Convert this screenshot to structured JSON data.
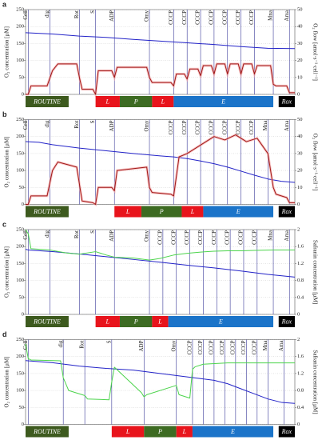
{
  "chart_data": [
    {
      "panel": "a",
      "type": "line",
      "ylabel": "O₂ concentration [µM]",
      "y2label": "O₂ flow [amol·s⁻¹·cell⁻¹]",
      "xlim": [
        0,
        100
      ],
      "ylim": [
        0,
        250
      ],
      "yticks": [
        0,
        50,
        100,
        150,
        200,
        250
      ],
      "y2lim": [
        0,
        50
      ],
      "y2ticks": [
        0,
        10,
        20,
        30,
        40,
        50
      ],
      "grid": true,
      "events": [
        {
          "label": "Cell",
          "x": 1
        },
        {
          "label": "dig",
          "x": 9
        },
        {
          "label": "Rot",
          "x": 20
        },
        {
          "label": "S",
          "x": 26
        },
        {
          "label": "ADP",
          "x": 33
        },
        {
          "label": "Omy",
          "x": 46
        },
        {
          "label": "CCCP",
          "x": 55
        },
        {
          "label": "CCCP",
          "x": 60
        },
        {
          "label": "CCCP",
          "x": 65
        },
        {
          "label": "CCCP",
          "x": 70
        },
        {
          "label": "CCCP",
          "x": 75
        },
        {
          "label": "CCCP",
          "x": 80
        },
        {
          "label": "CCCP",
          "x": 85
        },
        {
          "label": "Mna",
          "x": 92
        },
        {
          "label": "Ama",
          "x": 98
        }
      ],
      "states": [
        {
          "label": "ROUTINE",
          "start": 0,
          "end": 16,
          "color": "#3d5a1e"
        },
        {
          "label": "L",
          "start": 26,
          "end": 35,
          "color": "#e8141c"
        },
        {
          "label": "P",
          "start": 35,
          "end": 47,
          "color": "#3d6b22"
        },
        {
          "label": "L",
          "start": 47,
          "end": 55,
          "color": "#e8141c"
        },
        {
          "label": "E",
          "start": 55,
          "end": 92,
          "color": "#1b74c9"
        },
        {
          "label": "Rox",
          "start": 94,
          "end": 100,
          "color": "#000000"
        }
      ],
      "series": [
        {
          "color": "#2323c8",
          "x": [
            0,
            10,
            20,
            30,
            40,
            50,
            60,
            70,
            80,
            90,
            100
          ],
          "values": [
            182,
            178,
            172,
            168,
            162,
            157,
            152,
            147,
            141,
            136,
            135
          ]
        },
        {
          "color": "#a01818",
          "axis": "y2",
          "x": [
            0,
            1,
            2,
            8,
            10,
            12,
            19,
            20,
            21,
            25,
            26,
            27,
            32,
            33,
            34,
            45,
            46,
            47,
            54,
            55,
            56,
            59,
            60,
            61,
            64,
            65,
            66,
            69,
            70,
            71,
            74,
            75,
            76,
            79,
            80,
            81,
            84,
            85,
            86,
            91,
            92,
            93,
            97,
            98,
            100
          ],
          "values": [
            0,
            0,
            5,
            5,
            14,
            18,
            18,
            10,
            3,
            3,
            0,
            14,
            14,
            10,
            16,
            16,
            10,
            7,
            7,
            5,
            12,
            12,
            9,
            15,
            15,
            11,
            17,
            17,
            12,
            18,
            18,
            12,
            18,
            18,
            12,
            18,
            18,
            12,
            17,
            17,
            6,
            5,
            5,
            1,
            1
          ]
        }
      ]
    },
    {
      "panel": "b",
      "type": "line",
      "ylabel": "O₂ concentration [µM]",
      "y2label": "O₂ flow [amol·s⁻¹·cell⁻¹]",
      "xlim": [
        0,
        100
      ],
      "ylim": [
        0,
        250
      ],
      "yticks": [
        0,
        50,
        100,
        150,
        200,
        250
      ],
      "y2lim": [
        0,
        50
      ],
      "y2ticks": [
        0,
        10,
        20,
        30,
        40,
        50
      ],
      "grid": true,
      "events": [
        {
          "label": "Cell",
          "x": 1
        },
        {
          "label": "dig",
          "x": 9
        },
        {
          "label": "Rot",
          "x": 20
        },
        {
          "label": "S",
          "x": 26
        },
        {
          "label": "ADP",
          "x": 33
        },
        {
          "label": "Omy",
          "x": 46
        },
        {
          "label": "CCCP",
          "x": 55
        },
        {
          "label": "CCCP",
          "x": 60
        },
        {
          "label": "CCCP",
          "x": 65
        },
        {
          "label": "CCCP",
          "x": 70
        },
        {
          "label": "CCCP",
          "x": 75
        },
        {
          "label": "CCCP",
          "x": 80
        },
        {
          "label": "CCCP",
          "x": 85
        },
        {
          "label": "Mna",
          "x": 90
        },
        {
          "label": "Ama",
          "x": 98
        }
      ],
      "states": [
        {
          "label": "ROUTINE",
          "start": 0,
          "end": 16,
          "color": "#3d5a1e"
        },
        {
          "label": "L",
          "start": 33,
          "end": 43,
          "color": "#e8141c"
        },
        {
          "label": "P",
          "start": 43,
          "end": 58,
          "color": "#3d6b22"
        },
        {
          "label": "L",
          "start": 58,
          "end": 66,
          "color": "#e8141c"
        },
        {
          "label": "E",
          "start": 66,
          "end": 92,
          "color": "#1b74c9"
        },
        {
          "label": "Rox",
          "start": 94,
          "end": 100,
          "color": "#000000"
        }
      ],
      "series": [
        {
          "color": "#2323c8",
          "x": [
            0,
            5,
            10,
            20,
            30,
            40,
            50,
            55,
            60,
            65,
            70,
            75,
            80,
            85,
            90,
            95,
            100
          ],
          "values": [
            185,
            183,
            176,
            166,
            158,
            150,
            143,
            140,
            135,
            128,
            120,
            110,
            98,
            86,
            75,
            68,
            65
          ]
        },
        {
          "color": "#a01818",
          "axis": "y2",
          "x": [
            0,
            1,
            2,
            8,
            10,
            12,
            19,
            20,
            21,
            25,
            26,
            27,
            32,
            33,
            34,
            45,
            46,
            47,
            54,
            55,
            57,
            60,
            63,
            66,
            70,
            74,
            78,
            82,
            86,
            90,
            92,
            93,
            97,
            98,
            100
          ],
          "values": [
            0,
            0,
            5,
            5,
            20,
            25,
            22,
            12,
            2,
            1,
            0,
            10,
            10,
            8,
            20,
            22,
            10,
            7,
            6,
            5,
            28,
            30,
            33,
            36,
            40,
            38,
            41,
            37,
            39,
            30,
            10,
            6,
            4,
            1,
            1
          ]
        }
      ]
    },
    {
      "panel": "c",
      "type": "line",
      "ylabel": "O₂ concentration [µM]",
      "y2label": "Safranin concentration [µM]",
      "xlim": [
        0,
        100
      ],
      "ylim": [
        0,
        250
      ],
      "yticks": [
        0,
        50,
        100,
        150,
        200,
        250
      ],
      "y2lim": [
        0,
        2
      ],
      "y2ticks": [
        0,
        0.4,
        0.8,
        1.2,
        1.6,
        2
      ],
      "grid": true,
      "events": [
        {
          "label": "Cell",
          "x": 1
        },
        {
          "label": "dig",
          "x": 9
        },
        {
          "label": "Rot",
          "x": 20
        },
        {
          "label": "S",
          "x": 26
        },
        {
          "label": "ADP",
          "x": 33
        },
        {
          "label": "Omy",
          "x": 46
        },
        {
          "label": "CCCP",
          "x": 51
        },
        {
          "label": "CCCP",
          "x": 56
        },
        {
          "label": "CCCP",
          "x": 61
        },
        {
          "label": "CCCP",
          "x": 66
        },
        {
          "label": "CCCP",
          "x": 71
        },
        {
          "label": "CCCP",
          "x": 76
        },
        {
          "label": "CCCP",
          "x": 81
        },
        {
          "label": "CCCP",
          "x": 86
        },
        {
          "label": "Mna",
          "x": 92
        },
        {
          "label": "Ama",
          "x": 98
        }
      ],
      "states": [
        {
          "label": "ROUTINE",
          "start": 0,
          "end": 16,
          "color": "#3d5a1e"
        },
        {
          "label": "L",
          "start": 26,
          "end": 35,
          "color": "#e8141c"
        },
        {
          "label": "P",
          "start": 35,
          "end": 47,
          "color": "#3d6b22"
        },
        {
          "label": "L",
          "start": 47,
          "end": 53,
          "color": "#e8141c"
        },
        {
          "label": "E",
          "start": 53,
          "end": 92,
          "color": "#1b74c9"
        },
        {
          "label": "Rox",
          "start": 94,
          "end": 100,
          "color": "#000000"
        }
      ],
      "series": [
        {
          "color": "#2323c8",
          "x": [
            0,
            1,
            10,
            20,
            30,
            40,
            50,
            60,
            70,
            80,
            90,
            100
          ],
          "values": [
            192,
            190,
            185,
            178,
            170,
            162,
            154,
            145,
            137,
            128,
            118,
            110
          ]
        },
        {
          "color": "#4cd44c",
          "axis": "y2",
          "x": [
            0,
            1,
            2,
            9,
            15,
            20,
            26,
            30,
            33,
            40,
            46,
            50,
            55,
            60,
            65,
            70,
            75,
            80,
            85,
            92,
            100
          ],
          "values": [
            2.0,
            1.9,
            1.55,
            1.52,
            1.45,
            1.42,
            1.48,
            1.4,
            1.35,
            1.33,
            1.28,
            1.32,
            1.4,
            1.44,
            1.47,
            1.49,
            1.5,
            1.5,
            1.51,
            1.52,
            1.52
          ]
        }
      ]
    },
    {
      "panel": "d",
      "type": "line",
      "ylabel": "O₂ concentration [µM]",
      "y2label": "Safranin concentration [µM]",
      "xlim": [
        0,
        100
      ],
      "ylim": [
        0,
        250
      ],
      "yticks": [
        0,
        50,
        100,
        150,
        200,
        250
      ],
      "y2lim": [
        0,
        2
      ],
      "y2ticks": [
        0,
        0.4,
        0.8,
        1.2,
        1.6,
        2
      ],
      "grid": true,
      "events": [
        {
          "label": "Cell",
          "x": 1
        },
        {
          "label": "dig",
          "x": 14
        },
        {
          "label": "Rot",
          "x": 22
        },
        {
          "label": "S",
          "x": 32
        },
        {
          "label": "ADP",
          "x": 44
        },
        {
          "label": "Omy",
          "x": 56
        },
        {
          "label": "CCCP",
          "x": 62
        },
        {
          "label": "CCCP",
          "x": 66
        },
        {
          "label": "CCCP",
          "x": 70
        },
        {
          "label": "CCCP",
          "x": 74
        },
        {
          "label": "CCCP",
          "x": 78
        },
        {
          "label": "CCCP",
          "x": 82
        },
        {
          "label": "CCCP",
          "x": 86
        },
        {
          "label": "Mna",
          "x": 90
        },
        {
          "label": "Ama",
          "x": 96
        }
      ],
      "states": [
        {
          "label": "ROUTINE",
          "start": 0,
          "end": 16,
          "color": "#3d5a1e"
        },
        {
          "label": "L",
          "start": 32,
          "end": 44,
          "color": "#e8141c"
        },
        {
          "label": "P",
          "start": 44,
          "end": 56,
          "color": "#3d6b22"
        },
        {
          "label": "L",
          "start": 56,
          "end": 62,
          "color": "#e8141c"
        },
        {
          "label": "E",
          "start": 62,
          "end": 92,
          "color": "#1b74c9"
        },
        {
          "label": "Rox",
          "start": 94,
          "end": 100,
          "color": "#000000"
        }
      ],
      "series": [
        {
          "color": "#2323c8",
          "x": [
            0,
            10,
            20,
            30,
            40,
            50,
            60,
            70,
            75,
            80,
            85,
            90,
            95,
            100
          ],
          "values": [
            188,
            182,
            172,
            165,
            160,
            150,
            140,
            130,
            120,
            105,
            90,
            75,
            65,
            62
          ]
        },
        {
          "color": "#4cd44c",
          "axis": "y2",
          "x": [
            0,
            1,
            2,
            13,
            14,
            16,
            21,
            22,
            23,
            31,
            32,
            33,
            43,
            44,
            45,
            55,
            56,
            57,
            61,
            62,
            63,
            66,
            75,
            85,
            100
          ],
          "values": [
            1.9,
            1.55,
            1.52,
            1.5,
            1.1,
            0.8,
            0.7,
            0.68,
            0.6,
            0.58,
            1.0,
            1.35,
            0.75,
            0.65,
            0.7,
            0.9,
            0.92,
            0.7,
            0.62,
            1.3,
            1.36,
            1.42,
            1.45,
            1.45,
            1.45
          ]
        }
      ]
    }
  ]
}
